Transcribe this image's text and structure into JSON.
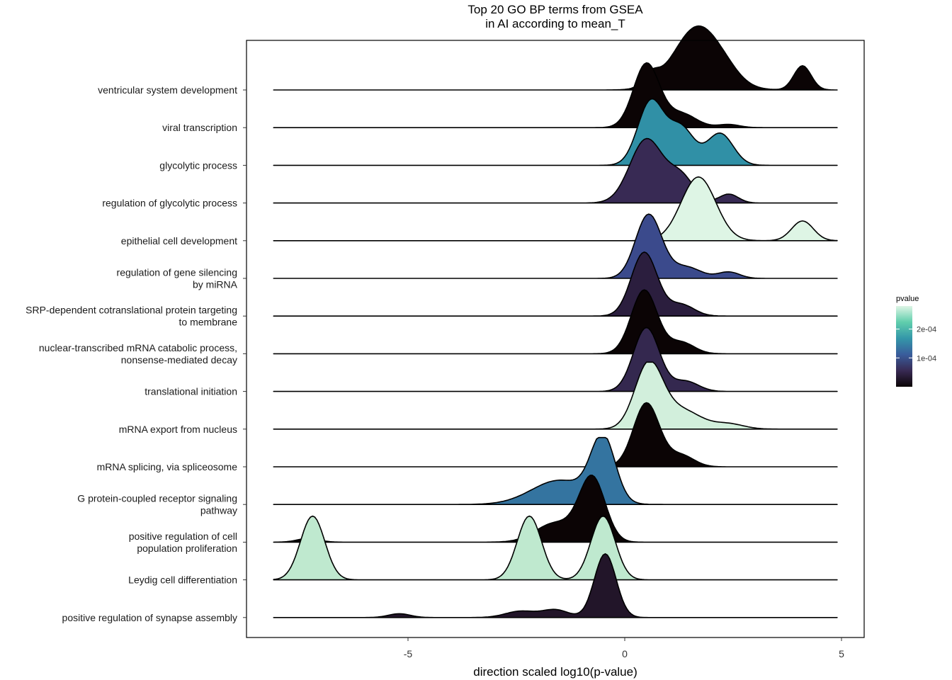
{
  "chart_data": {
    "type": "ridgeline",
    "title": "Top 20 GO BP terms from GSEA",
    "subtitle": "in AI according to mean_T",
    "xlabel": "direction scaled log10(p-value)",
    "ylabel": "",
    "xlim": [
      -8.5,
      5.4
    ],
    "x_ticks": [
      {
        "value": -5,
        "label": "-5"
      },
      {
        "value": 0,
        "label": "0"
      },
      {
        "value": 5,
        "label": "5"
      }
    ],
    "grid": false,
    "legend": {
      "title": "pvalue",
      "placement": "right",
      "range": [
        0.0,
        0.00028
      ],
      "ticks": [
        {
          "value": 0.0001,
          "label": "1e-04"
        },
        {
          "value": 0.0002,
          "label": "2e-04"
        }
      ],
      "colors": [
        "#0b0405",
        "#382a54",
        "#395d9c",
        "#3497a9",
        "#60ceac",
        "#def5e5"
      ]
    },
    "series": [
      {
        "name": "ventricular system development",
        "label_lines": [
          "ventricular system development"
        ],
        "fill": "#0b0405",
        "xmin": -8.1,
        "xmax": 4.9,
        "peaks": [
          [
            1.7,
            0.55,
            1.0
          ],
          [
            4.1,
            0.2,
            0.38
          ],
          [
            0.6,
            0.18,
            0.18
          ],
          [
            2.4,
            0.3,
            0.05
          ]
        ]
      },
      {
        "name": "viral transcription",
        "label_lines": [
          "viral transcription"
        ],
        "fill": "#0b0405",
        "xmin": -8.1,
        "xmax": 4.9,
        "peaks": [
          [
            0.5,
            0.3,
            1.0
          ],
          [
            1.3,
            0.35,
            0.22
          ],
          [
            2.4,
            0.25,
            0.05
          ]
        ]
      },
      {
        "name": "glycolytic process",
        "label_lines": [
          "glycolytic process"
        ],
        "fill": "#3090a6",
        "xmin": -8.1,
        "xmax": 4.9,
        "peaks": [
          [
            0.6,
            0.3,
            1.0
          ],
          [
            1.3,
            0.3,
            0.58
          ],
          [
            2.2,
            0.3,
            0.5
          ]
        ]
      },
      {
        "name": "regulation of glycolytic process",
        "label_lines": [
          "regulation of glycolytic process"
        ],
        "fill": "#382a54",
        "xmin": -8.1,
        "xmax": 4.9,
        "peaks": [
          [
            0.5,
            0.38,
            1.0
          ],
          [
            1.3,
            0.3,
            0.4
          ],
          [
            2.4,
            0.22,
            0.14
          ]
        ]
      },
      {
        "name": "epithelial cell development",
        "label_lines": [
          "epithelial cell development"
        ],
        "fill": "#def5e5",
        "xmin": -8.1,
        "xmax": 4.9,
        "peaks": [
          [
            1.7,
            0.4,
            1.0
          ],
          [
            4.1,
            0.25,
            0.31
          ]
        ]
      },
      {
        "name": "regulation of gene silencing by miRNA",
        "label_lines": [
          "regulation of gene silencing",
          "by miRNA"
        ],
        "fill": "#3b4a8c",
        "xmin": -8.1,
        "xmax": 4.9,
        "peaks": [
          [
            0.55,
            0.3,
            1.0
          ],
          [
            1.4,
            0.35,
            0.18
          ],
          [
            2.4,
            0.25,
            0.1
          ]
        ]
      },
      {
        "name": "SRP-dependent cotranslational protein targeting to membrane",
        "label_lines": [
          "SRP-dependent cotranslational protein targeting",
          "to membrane"
        ],
        "fill": "#2b1e3e",
        "xmin": -8.1,
        "xmax": 4.9,
        "peaks": [
          [
            0.45,
            0.3,
            1.0
          ],
          [
            1.3,
            0.3,
            0.18
          ]
        ]
      },
      {
        "name": "nuclear-transcribed mRNA catabolic process, nonsense-mediated decay",
        "label_lines": [
          "nuclear-transcribed mRNA catabolic process,",
          "nonsense-mediated decay"
        ],
        "fill": "#0b0405",
        "xmin": -8.1,
        "xmax": 4.9,
        "peaks": [
          [
            0.45,
            0.3,
            1.0
          ],
          [
            1.3,
            0.3,
            0.18
          ]
        ]
      },
      {
        "name": "translational initiation",
        "label_lines": [
          "translational initiation"
        ],
        "fill": "#34284f",
        "xmin": -8.1,
        "xmax": 4.9,
        "peaks": [
          [
            0.5,
            0.3,
            1.0
          ],
          [
            1.4,
            0.3,
            0.16
          ]
        ]
      },
      {
        "name": "mRNA export from nucleus",
        "label_lines": [
          "mRNA export from nucleus"
        ],
        "fill": "#d2efdc",
        "xmin": -8.1,
        "xmax": 4.9,
        "peaks": [
          [
            0.55,
            0.32,
            1.0
          ],
          [
            1.3,
            0.45,
            0.3
          ],
          [
            2.4,
            0.35,
            0.08
          ]
        ]
      },
      {
        "name": "mRNA splicing, via spliceosome",
        "label_lines": [
          "mRNA splicing, via spliceosome"
        ],
        "fill": "#0b0405",
        "xmin": -8.1,
        "xmax": 4.9,
        "peaks": [
          [
            0.5,
            0.3,
            1.0
          ],
          [
            1.3,
            0.3,
            0.18
          ]
        ]
      },
      {
        "name": "G protein-coupled receptor signaling pathway",
        "label_lines": [
          "G protein-coupled receptor signaling",
          "pathway"
        ],
        "fill": "#3474a0",
        "xmin": -8.1,
        "xmax": 4.9,
        "peaks": [
          [
            -0.5,
            0.28,
            1.0
          ],
          [
            -1.5,
            0.65,
            0.38
          ]
        ]
      },
      {
        "name": "positive regulation of cell population proliferation",
        "label_lines": [
          "positive regulation of cell",
          "population proliferation"
        ],
        "fill": "#0b0405",
        "xmin": -8.1,
        "xmax": 4.9,
        "peaks": [
          [
            -0.75,
            0.3,
            1.0
          ],
          [
            -1.6,
            0.45,
            0.3
          ],
          [
            -7.3,
            0.25,
            0.06
          ]
        ]
      },
      {
        "name": "Leydig cell differentiation",
        "label_lines": [
          "Leydig cell differentiation"
        ],
        "fill": "#bfe9cf",
        "xmin": -8.1,
        "xmax": 4.9,
        "peaks": [
          [
            -7.2,
            0.28,
            1.0
          ],
          [
            -2.2,
            0.28,
            1.0
          ],
          [
            -0.5,
            0.28,
            1.0
          ]
        ]
      },
      {
        "name": "positive regulation of synapse assembly",
        "label_lines": [
          "positive regulation of synapse assembly"
        ],
        "fill": "#221529",
        "xmin": -8.1,
        "xmax": 4.9,
        "peaks": [
          [
            -0.45,
            0.25,
            1.0
          ],
          [
            -2.4,
            0.35,
            0.1
          ],
          [
            -1.6,
            0.3,
            0.12
          ],
          [
            -5.2,
            0.25,
            0.06
          ]
        ]
      }
    ]
  }
}
